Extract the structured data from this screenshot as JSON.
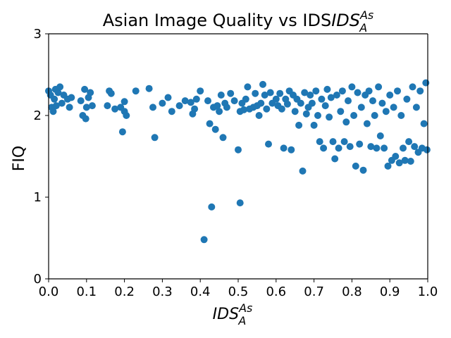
{
  "chart_data": {
    "type": "scatter",
    "title": "Asian Image Quality vs IDS",
    "title_math": {
      "base": "IDS",
      "sub": "A",
      "sup": "As"
    },
    "xlabel": "IDS",
    "xlabel_math": {
      "base": "IDS",
      "sub": "A",
      "sup": "As"
    },
    "ylabel": "FIQ",
    "xlim": [
      0.0,
      1.0
    ],
    "ylim": [
      0,
      3
    ],
    "x_ticks": [
      "0.0",
      "0.1",
      "0.2",
      "0.3",
      "0.4",
      "0.5",
      "0.6",
      "0.7",
      "0.8",
      "0.9",
      "1.0"
    ],
    "y_ticks": [
      "0",
      "1",
      "2",
      "3"
    ],
    "grid": false,
    "marker_color": "#1f77b4",
    "points": [
      [
        0.0,
        2.3
      ],
      [
        0.005,
        2.25
      ],
      [
        0.008,
        2.1
      ],
      [
        0.012,
        2.05
      ],
      [
        0.015,
        2.2
      ],
      [
        0.018,
        2.32
      ],
      [
        0.02,
        2.12
      ],
      [
        0.025,
        2.28
      ],
      [
        0.03,
        2.35
      ],
      [
        0.035,
        2.15
      ],
      [
        0.04,
        2.25
      ],
      [
        0.05,
        2.2
      ],
      [
        0.055,
        2.1
      ],
      [
        0.06,
        2.22
      ],
      [
        0.085,
        2.18
      ],
      [
        0.09,
        2.0
      ],
      [
        0.095,
        2.32
      ],
      [
        0.098,
        1.96
      ],
      [
        0.1,
        2.1
      ],
      [
        0.105,
        2.22
      ],
      [
        0.11,
        2.28
      ],
      [
        0.115,
        2.12
      ],
      [
        0.155,
        2.12
      ],
      [
        0.16,
        2.3
      ],
      [
        0.165,
        2.27
      ],
      [
        0.175,
        2.08
      ],
      [
        0.19,
        2.1
      ],
      [
        0.195,
        1.8
      ],
      [
        0.2,
        2.05
      ],
      [
        0.205,
        2.0
      ],
      [
        0.2,
        2.17
      ],
      [
        0.23,
        2.3
      ],
      [
        0.265,
        2.33
      ],
      [
        0.275,
        2.1
      ],
      [
        0.28,
        1.73
      ],
      [
        0.3,
        2.15
      ],
      [
        0.315,
        2.22
      ],
      [
        0.325,
        2.05
      ],
      [
        0.345,
        2.12
      ],
      [
        0.36,
        2.18
      ],
      [
        0.375,
        2.16
      ],
      [
        0.38,
        2.02
      ],
      [
        0.385,
        2.08
      ],
      [
        0.39,
        2.2
      ],
      [
        0.4,
        2.3
      ],
      [
        0.41,
        0.48
      ],
      [
        0.42,
        2.18
      ],
      [
        0.425,
        1.9
      ],
      [
        0.43,
        0.88
      ],
      [
        0.435,
        2.1
      ],
      [
        0.44,
        1.83
      ],
      [
        0.445,
        2.12
      ],
      [
        0.45,
        2.05
      ],
      [
        0.455,
        2.25
      ],
      [
        0.46,
        1.73
      ],
      [
        0.465,
        2.15
      ],
      [
        0.47,
        2.1
      ],
      [
        0.48,
        2.27
      ],
      [
        0.49,
        2.18
      ],
      [
        0.5,
        1.58
      ],
      [
        0.505,
        0.93
      ],
      [
        0.505,
        2.05
      ],
      [
        0.51,
        2.15
      ],
      [
        0.515,
        2.07
      ],
      [
        0.52,
        2.2
      ],
      [
        0.525,
        2.35
      ],
      [
        0.53,
        2.08
      ],
      [
        0.54,
        2.1
      ],
      [
        0.545,
        2.27
      ],
      [
        0.55,
        2.12
      ],
      [
        0.555,
        2.0
      ],
      [
        0.56,
        2.15
      ],
      [
        0.565,
        2.38
      ],
      [
        0.57,
        2.25
      ],
      [
        0.575,
        2.08
      ],
      [
        0.58,
        1.65
      ],
      [
        0.585,
        2.28
      ],
      [
        0.59,
        2.15
      ],
      [
        0.6,
        2.2
      ],
      [
        0.605,
        2.12
      ],
      [
        0.61,
        2.27
      ],
      [
        0.615,
        2.08
      ],
      [
        0.62,
        1.6
      ],
      [
        0.625,
        2.2
      ],
      [
        0.63,
        2.14
      ],
      [
        0.635,
        2.3
      ],
      [
        0.64,
        1.58
      ],
      [
        0.645,
        2.25
      ],
      [
        0.65,
        2.05
      ],
      [
        0.655,
        2.2
      ],
      [
        0.66,
        1.88
      ],
      [
        0.665,
        2.15
      ],
      [
        0.67,
        1.32
      ],
      [
        0.675,
        2.28
      ],
      [
        0.68,
        2.02
      ],
      [
        0.685,
        2.1
      ],
      [
        0.69,
        2.25
      ],
      [
        0.695,
        2.15
      ],
      [
        0.7,
        1.88
      ],
      [
        0.705,
        2.3
      ],
      [
        0.71,
        2.0
      ],
      [
        0.715,
        1.68
      ],
      [
        0.72,
        2.2
      ],
      [
        0.725,
        1.6
      ],
      [
        0.73,
        2.12
      ],
      [
        0.735,
        2.32
      ],
      [
        0.74,
        1.98
      ],
      [
        0.745,
        2.22
      ],
      [
        0.75,
        1.68
      ],
      [
        0.755,
        1.47
      ],
      [
        0.76,
        2.25
      ],
      [
        0.765,
        1.6
      ],
      [
        0.77,
        2.05
      ],
      [
        0.775,
        2.3
      ],
      [
        0.78,
        1.68
      ],
      [
        0.785,
        1.92
      ],
      [
        0.79,
        2.18
      ],
      [
        0.795,
        1.62
      ],
      [
        0.8,
        2.35
      ],
      [
        0.805,
        2.0
      ],
      [
        0.81,
        1.38
      ],
      [
        0.815,
        2.28
      ],
      [
        0.82,
        1.65
      ],
      [
        0.825,
        2.1
      ],
      [
        0.83,
        1.33
      ],
      [
        0.835,
        2.25
      ],
      [
        0.84,
        1.9
      ],
      [
        0.845,
        2.3
      ],
      [
        0.85,
        1.62
      ],
      [
        0.855,
        2.18
      ],
      [
        0.86,
        2.0
      ],
      [
        0.865,
        1.6
      ],
      [
        0.87,
        2.35
      ],
      [
        0.875,
        1.75
      ],
      [
        0.88,
        2.15
      ],
      [
        0.885,
        1.6
      ],
      [
        0.89,
        2.05
      ],
      [
        0.895,
        1.38
      ],
      [
        0.9,
        2.25
      ],
      [
        0.905,
        1.45
      ],
      [
        0.91,
        2.1
      ],
      [
        0.915,
        1.5
      ],
      [
        0.92,
        2.3
      ],
      [
        0.925,
        1.42
      ],
      [
        0.93,
        2.0
      ],
      [
        0.935,
        1.6
      ],
      [
        0.94,
        1.45
      ],
      [
        0.945,
        2.2
      ],
      [
        0.95,
        1.68
      ],
      [
        0.955,
        1.44
      ],
      [
        0.96,
        2.35
      ],
      [
        0.965,
        1.62
      ],
      [
        0.97,
        2.1
      ],
      [
        0.975,
        1.55
      ],
      [
        0.98,
        2.3
      ],
      [
        0.985,
        1.6
      ],
      [
        0.99,
        1.9
      ],
      [
        0.995,
        2.4
      ],
      [
        0.998,
        1.58
      ]
    ]
  }
}
